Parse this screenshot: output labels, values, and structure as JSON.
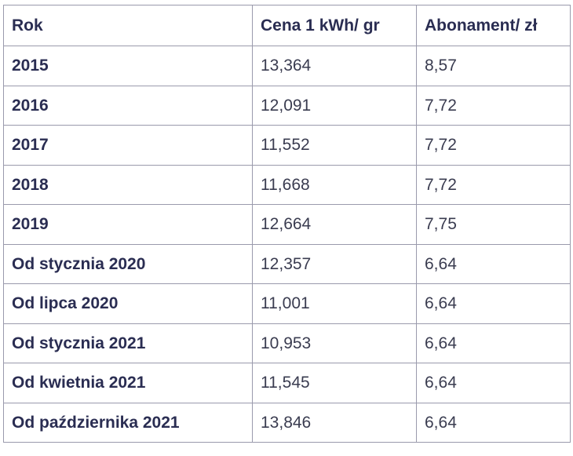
{
  "table": {
    "headers": [
      "Rok",
      "Cena 1 kWh/ gr",
      "Abonament/ zł"
    ],
    "rows": [
      [
        "2015",
        "13,364",
        "8,57"
      ],
      [
        "2016",
        "12,091",
        "7,72"
      ],
      [
        "2017",
        "11,552",
        "7,72"
      ],
      [
        "2018",
        "11,668",
        "7,72"
      ],
      [
        "2019",
        "12,664",
        "7,75"
      ],
      [
        "Od stycznia 2020",
        "12,357",
        "6,64"
      ],
      [
        "Od lipca 2020",
        "11,001",
        "6,64"
      ],
      [
        "Od stycznia 2021",
        "10,953",
        "6,64"
      ],
      [
        "Od kwietnia 2021",
        "11,545",
        "6,64"
      ],
      [
        "Od października 2021",
        "13,846",
        "6,64"
      ]
    ]
  }
}
